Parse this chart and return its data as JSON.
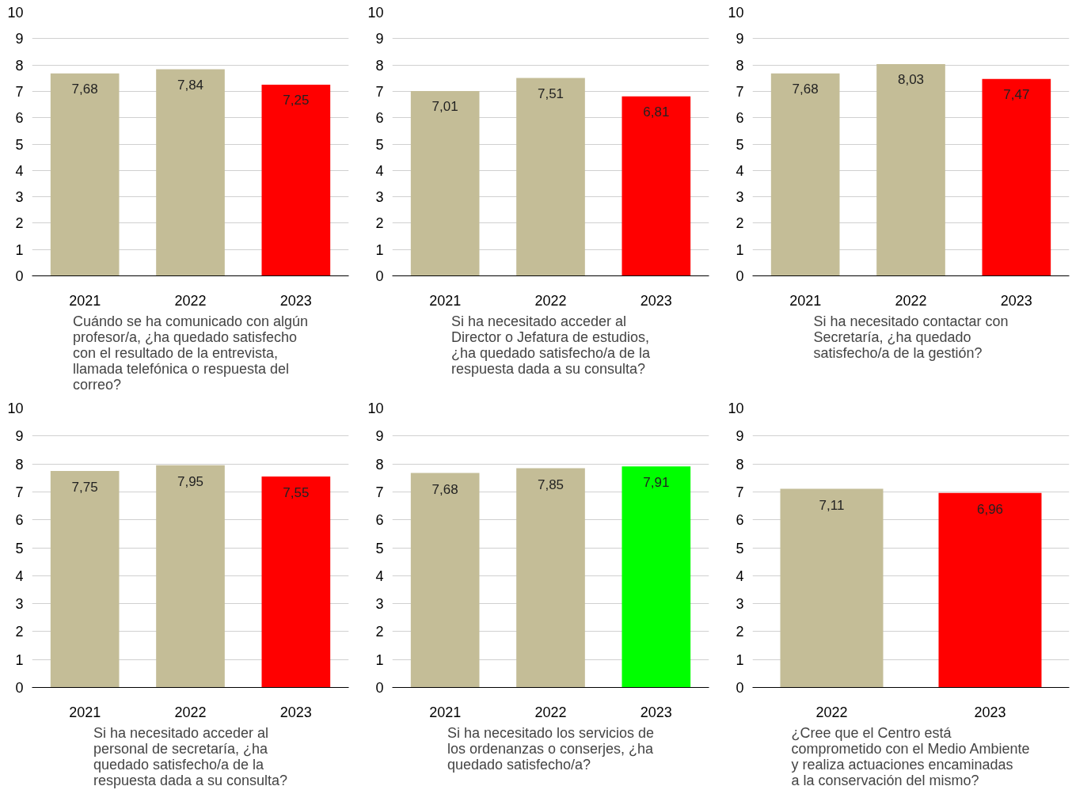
{
  "chart_data": [
    {
      "type": "bar",
      "title": "Cuándo se ha comunicado con algún profesor/a, ¿ha quedado satisfecho con el resultado de la entrevista, llamada telefónica o respuesta del correo?",
      "categories": [
        "2021",
        "2022",
        "2023"
      ],
      "values": [
        7.68,
        7.84,
        7.25
      ],
      "value_labels": [
        "7,68",
        "7,84",
        "7,25"
      ],
      "colors": [
        "#c4bd97",
        "#c4bd97",
        "#ff0000"
      ],
      "ylim": [
        0,
        10
      ],
      "yticks": [
        0,
        1,
        2,
        3,
        4,
        5,
        6,
        7,
        8,
        9,
        10
      ],
      "grid": "y"
    },
    {
      "type": "bar",
      "title": "Si ha necesitado acceder al Director o Jefatura de estudios, ¿ha quedado satisfecho/a de la respuesta dada a su consulta?",
      "categories": [
        "2021",
        "2022",
        "2023"
      ],
      "values": [
        7.01,
        7.51,
        6.81
      ],
      "value_labels": [
        "7,01",
        "7,51",
        "6,81"
      ],
      "colors": [
        "#c4bd97",
        "#c4bd97",
        "#ff0000"
      ],
      "ylim": [
        0,
        10
      ],
      "yticks": [
        0,
        1,
        2,
        3,
        4,
        5,
        6,
        7,
        8,
        9,
        10
      ],
      "grid": "y"
    },
    {
      "type": "bar",
      "title": "Si ha necesitado contactar con Secretaría, ¿ha quedado satisfecho/a de la gestión?",
      "categories": [
        "2021",
        "2022",
        "2023"
      ],
      "values": [
        7.68,
        8.03,
        7.47
      ],
      "value_labels": [
        "7,68",
        "8,03",
        "7,47"
      ],
      "colors": [
        "#c4bd97",
        "#c4bd97",
        "#ff0000"
      ],
      "ylim": [
        0,
        10
      ],
      "yticks": [
        0,
        1,
        2,
        3,
        4,
        5,
        6,
        7,
        8,
        9,
        10
      ],
      "grid": "y"
    },
    {
      "type": "bar",
      "title": "Si ha necesitado acceder al personal de secretaría, ¿ha quedado satisfecho/a de la respuesta dada a su consulta?",
      "categories": [
        "2021",
        "2022",
        "2023"
      ],
      "values": [
        7.75,
        7.95,
        7.55
      ],
      "value_labels": [
        "7,75",
        "7,95",
        "7,55"
      ],
      "colors": [
        "#c4bd97",
        "#c4bd97",
        "#ff0000"
      ],
      "ylim": [
        0,
        10
      ],
      "yticks": [
        0,
        1,
        2,
        3,
        4,
        5,
        6,
        7,
        8,
        9,
        10
      ],
      "grid": "y"
    },
    {
      "type": "bar",
      "title": "Si ha necesitado los servicios de los ordenanzas o conserjes, ¿ha quedado satisfecho/a?",
      "categories": [
        "2021",
        "2022",
        "2023"
      ],
      "values": [
        7.68,
        7.85,
        7.91
      ],
      "value_labels": [
        "7,68",
        "7,85",
        "7,91"
      ],
      "colors": [
        "#c4bd97",
        "#c4bd97",
        "#00ff00"
      ],
      "ylim": [
        0,
        10
      ],
      "yticks": [
        0,
        1,
        2,
        3,
        4,
        5,
        6,
        7,
        8,
        9,
        10
      ],
      "grid": "y"
    },
    {
      "type": "bar",
      "title": "¿Cree que el Centro está comprometido con el Medio Ambiente y realiza actuaciones encaminadas a la conservación del mismo?",
      "categories": [
        "2022",
        "2023"
      ],
      "values": [
        7.11,
        6.96
      ],
      "value_labels": [
        "7,11",
        "6,96"
      ],
      "colors": [
        "#c4bd97",
        "#ff0000"
      ],
      "ylim": [
        0,
        10
      ],
      "yticks": [
        0,
        1,
        2,
        3,
        4,
        5,
        6,
        7,
        8,
        9,
        10
      ],
      "grid": "y"
    }
  ]
}
